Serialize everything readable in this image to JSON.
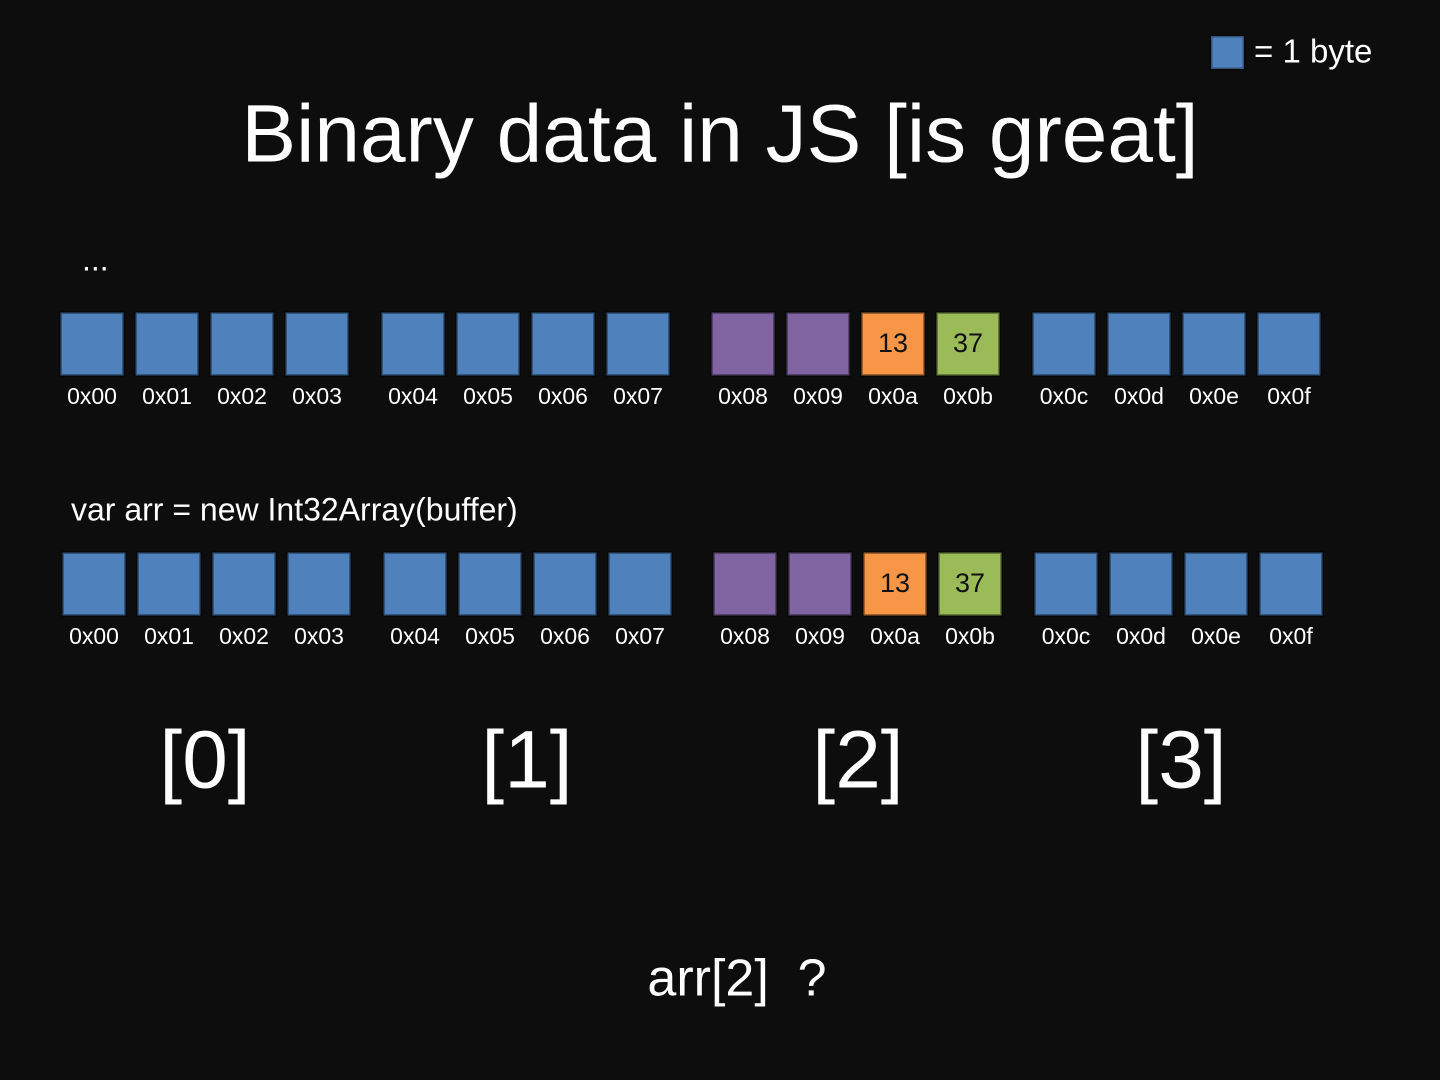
{
  "legend": {
    "label": "= 1 byte",
    "color": "#4f81bd"
  },
  "title": "Binary data in JS [is great]",
  "rows": [
    {
      "caption": "...",
      "bytes": [
        {
          "address": "0x00",
          "color": "#4f81bd"
        },
        {
          "address": "0x01",
          "color": "#4f81bd"
        },
        {
          "address": "0x02",
          "color": "#4f81bd"
        },
        {
          "address": "0x03",
          "color": "#4f81bd"
        },
        {
          "address": "0x04",
          "color": "#4f81bd"
        },
        {
          "address": "0x05",
          "color": "#4f81bd"
        },
        {
          "address": "0x06",
          "color": "#4f81bd"
        },
        {
          "address": "0x07",
          "color": "#4f81bd"
        },
        {
          "address": "0x08",
          "color": "#8064a2"
        },
        {
          "address": "0x09",
          "color": "#8064a2"
        },
        {
          "address": "0x0a",
          "color": "#f79646",
          "value": "13"
        },
        {
          "address": "0x0b",
          "color": "#9bbb59",
          "value": "37"
        },
        {
          "address": "0x0c",
          "color": "#4f81bd"
        },
        {
          "address": "0x0d",
          "color": "#4f81bd"
        },
        {
          "address": "0x0e",
          "color": "#4f81bd"
        },
        {
          "address": "0x0f",
          "color": "#4f81bd"
        }
      ]
    },
    {
      "caption": "var arr = new Int32Array(buffer)",
      "bytes": [
        {
          "address": "0x00",
          "color": "#4f81bd"
        },
        {
          "address": "0x01",
          "color": "#4f81bd"
        },
        {
          "address": "0x02",
          "color": "#4f81bd"
        },
        {
          "address": "0x03",
          "color": "#4f81bd"
        },
        {
          "address": "0x04",
          "color": "#4f81bd"
        },
        {
          "address": "0x05",
          "color": "#4f81bd"
        },
        {
          "address": "0x06",
          "color": "#4f81bd"
        },
        {
          "address": "0x07",
          "color": "#4f81bd"
        },
        {
          "address": "0x08",
          "color": "#8064a2"
        },
        {
          "address": "0x09",
          "color": "#8064a2"
        },
        {
          "address": "0x0a",
          "color": "#f79646",
          "value": "13"
        },
        {
          "address": "0x0b",
          "color": "#9bbb59",
          "value": "37"
        },
        {
          "address": "0x0c",
          "color": "#4f81bd"
        },
        {
          "address": "0x0d",
          "color": "#4f81bd"
        },
        {
          "address": "0x0e",
          "color": "#4f81bd"
        },
        {
          "address": "0x0f",
          "color": "#4f81bd"
        }
      ]
    }
  ],
  "indices": [
    "[0]",
    "[1]",
    "[2]",
    "[3]"
  ],
  "question": "arr[2]  ?"
}
